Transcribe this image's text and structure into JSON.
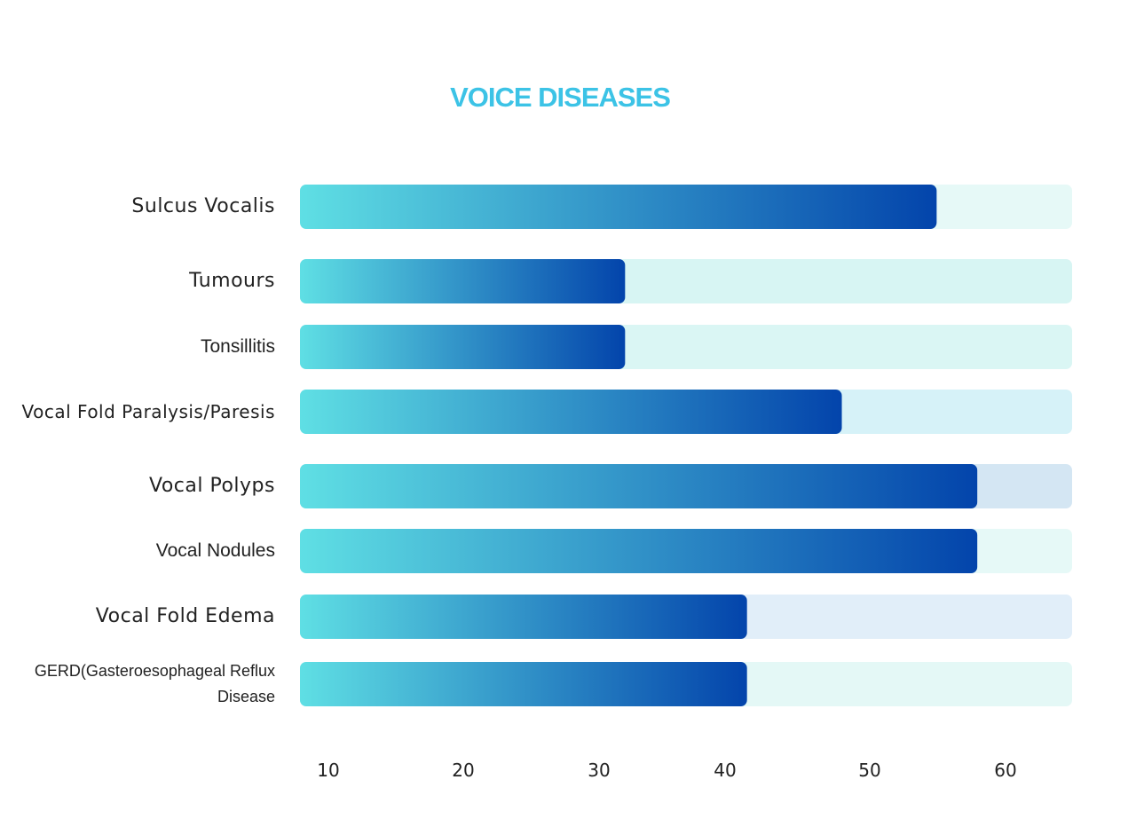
{
  "chart_data": {
    "type": "bar",
    "orientation": "horizontal",
    "title": "VOICE DISEASES",
    "categories": [
      "Sulcus Vocalis",
      "Tumours",
      "Tonsillitis",
      "Vocal Fold Paralysis/Paresis",
      "Vocal Polyps",
      "Vocal Nodules",
      "Vocal Fold Edema",
      "GERD(Gasteroesophageal Reflux Disease"
    ],
    "values": [
      55,
      32,
      32,
      48,
      58,
      58,
      41,
      41
    ],
    "x_ticks": [
      "10",
      "20",
      "30",
      "40",
      "50",
      "60"
    ],
    "xlim": [
      8,
      65
    ],
    "grid": false,
    "colors": {
      "title": "#3cc3e6",
      "bar_start": "#5fdfe4",
      "bar_end": "#0344ab",
      "track": "#e2f7f6"
    }
  }
}
